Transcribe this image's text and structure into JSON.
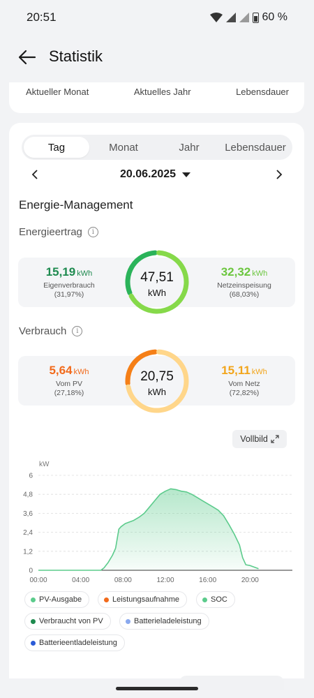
{
  "status_bar": {
    "time": "20:51",
    "battery": "60 %"
  },
  "header": {
    "title": "Statistik"
  },
  "top_tabs": [
    "Aktueller Monat",
    "Aktuelles Jahr",
    "Lebensdauer"
  ],
  "period_tabs": {
    "items": [
      "Tag",
      "Monat",
      "Jahr",
      "Lebensdauer"
    ],
    "selected": "Tag"
  },
  "date": "20.06.2025",
  "energy_management": {
    "title": "Energie-Management",
    "yield": {
      "label": "Energieertrag",
      "total": "47,51",
      "total_unit": "kWh",
      "left": {
        "value": "15,19",
        "unit": "kWh",
        "label": "Eigenverbrauch",
        "pct": "(31,97%)",
        "color": "#1e8a4f"
      },
      "right": {
        "value": "32,32",
        "unit": "kWh",
        "label": "Netzeinspeisung",
        "pct": "(68,03%)",
        "color": "#6cc63f"
      },
      "ring_share": 0.3197
    },
    "consumption": {
      "label": "Verbrauch",
      "total": "20,75",
      "total_unit": "kWh",
      "left": {
        "value": "5,64",
        "unit": "kWh",
        "label": "Vom PV",
        "pct": "(27,18%)",
        "color": "#f26a1b"
      },
      "right": {
        "value": "15,11",
        "unit": "kWh",
        "label": "Vom Netz",
        "pct": "(72,82%)",
        "color": "#f2a51b"
      },
      "ring_share": 0.2718
    }
  },
  "fullview_label": "Vollbild",
  "chart_data": {
    "type": "area",
    "ylabel": "kW",
    "yticks": [
      "0",
      "1,2",
      "2,4",
      "3,6",
      "4,8",
      "6"
    ],
    "xticks": [
      "00:00",
      "04:00",
      "08:00",
      "12:00",
      "16:00",
      "20:00"
    ],
    "ylim": [
      0,
      6
    ],
    "xlim_hours": [
      0,
      24
    ],
    "grid": true,
    "series": [
      {
        "name": "PV-Ausgabe",
        "color": "#5ccb8c",
        "x": [
          0,
          5.9,
          6.2,
          6.6,
          7.0,
          7.3,
          7.6,
          7.8,
          8.2,
          8.6,
          9.0,
          9.5,
          10.0,
          10.5,
          11.0,
          11.5,
          12.0,
          12.5,
          13.0,
          13.5,
          14.0,
          14.5,
          15.0,
          15.5,
          16.0,
          16.5,
          17.0,
          17.5,
          18.0,
          18.5,
          19.0,
          19.3,
          19.6,
          20.0,
          20.4,
          20.8
        ],
        "y": [
          0,
          0,
          0.15,
          0.5,
          0.95,
          1.4,
          2.6,
          2.75,
          2.95,
          3.05,
          3.15,
          3.35,
          3.6,
          4.0,
          4.4,
          4.8,
          5.0,
          5.15,
          5.1,
          5.0,
          4.95,
          4.8,
          4.6,
          4.4,
          4.2,
          4.0,
          3.8,
          3.45,
          2.9,
          2.3,
          1.6,
          0.8,
          0.35,
          0.3,
          0.2,
          0.1
        ]
      }
    ]
  },
  "legend": [
    {
      "label": "PV-Ausgabe",
      "color": "#5ccb8c",
      "active": true
    },
    {
      "label": "Leistungsaufnahme",
      "color": "#f26a1b",
      "active": false
    },
    {
      "label": "SOC",
      "color": "#5ccb8c",
      "active": false
    },
    {
      "label": "Verbraucht von PV",
      "color": "#1e8a4f",
      "active": false
    },
    {
      "label": "Batterieladeleistung",
      "color": "#8aa9ee",
      "active": false
    },
    {
      "label": "Batterieentladeleistung",
      "color": "#2a5bd7",
      "active": false
    }
  ]
}
